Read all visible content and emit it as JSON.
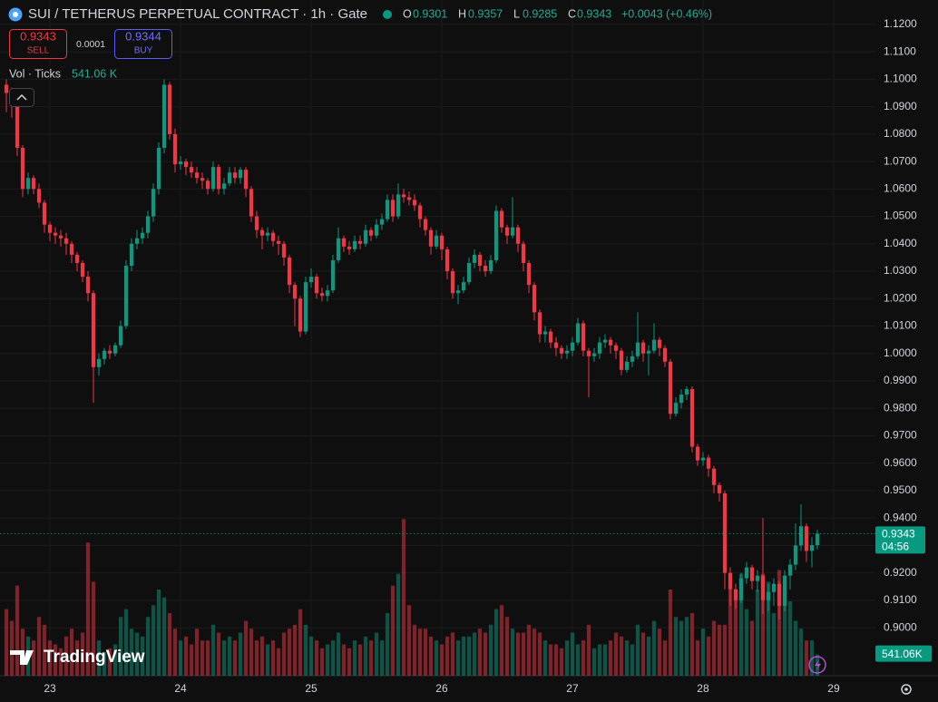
{
  "chart_data": {
    "type": "candlestick",
    "title": "SUI / TETHERUS PERPETUAL CONTRACT · 1h · Gate",
    "ohlc_letters": [
      "O",
      "H",
      "L",
      "C"
    ],
    "change_label": "+0.0043 (+0.46%)",
    "sell_price": 0.9343,
    "sell_label": "SELL",
    "spread": 0.0001,
    "buy_price": 0.9344,
    "buy_label": "BUY",
    "volume_name": "Vol · Ticks",
    "volume_label": "541.06 K",
    "volume_tag": "541.06K",
    "countdown": "04:56",
    "logo": "TradingView",
    "up_color": "#089981",
    "down_color": "#f23645",
    "grid": true,
    "ylim": [
      0.8825,
      1.1289
    ],
    "yticks": [
      {
        "value": 0.9,
        "label": "0.9000"
      },
      {
        "value": 0.91,
        "label": "0.9100"
      },
      {
        "value": 0.92,
        "label": "0.9200"
      },
      {
        "value": 0.93,
        "label": "0.9300"
      },
      {
        "value": 0.94,
        "label": "0.9400"
      },
      {
        "value": 0.95,
        "label": "0.9500"
      },
      {
        "value": 0.96,
        "label": "0.9600"
      },
      {
        "value": 0.97,
        "label": "0.9700"
      },
      {
        "value": 0.98,
        "label": "0.9800"
      },
      {
        "value": 0.99,
        "label": "0.9900"
      },
      {
        "value": 1.0,
        "label": "1.0000"
      },
      {
        "value": 1.01,
        "label": "1.0100"
      },
      {
        "value": 1.02,
        "label": "1.0200"
      },
      {
        "value": 1.03,
        "label": "1.0300"
      },
      {
        "value": 1.04,
        "label": "1.0400"
      },
      {
        "value": 1.05,
        "label": "1.0500"
      },
      {
        "value": 1.06,
        "label": "1.0600"
      },
      {
        "value": 1.07,
        "label": "1.0700"
      },
      {
        "value": 1.08,
        "label": "1.0800"
      },
      {
        "value": 1.09,
        "label": "1.0900"
      },
      {
        "value": 1.1,
        "label": "1.1000"
      },
      {
        "value": 1.11,
        "label": "1.1100"
      },
      {
        "value": 1.12,
        "label": "1.1200"
      }
    ],
    "xlim": [
      -1.1667,
      159.67
    ],
    "xticks": [
      {
        "value": 8,
        "label": "23"
      },
      {
        "value": 32,
        "label": "24"
      },
      {
        "value": 56,
        "label": "25"
      },
      {
        "value": 80,
        "label": "26"
      },
      {
        "value": 104,
        "label": "27"
      },
      {
        "value": 128,
        "label": "28"
      },
      {
        "value": 152,
        "label": "29"
      }
    ],
    "vlim": [
      0,
      4400
    ],
    "open": [
      1.098,
      1.095,
      1.092,
      1.075,
      1.06,
      1.064,
      1.06,
      1.055,
      1.047,
      1.044,
      1.043,
      1.042,
      1.04,
      1.036,
      1.033,
      1.028,
      1.022,
      0.995,
      0.998,
      1.001,
      1.0,
      1.003,
      1.01,
      1.032,
      1.04,
      1.042,
      1.044,
      1.05,
      1.06,
      1.075,
      1.098,
      1.08,
      1.069,
      1.07,
      1.068,
      1.066,
      1.064,
      1.063,
      1.06,
      1.068,
      1.06,
      1.062,
      1.066,
      1.064,
      1.067,
      1.06,
      1.05,
      1.045,
      1.043,
      1.044,
      1.041,
      1.04,
      1.035,
      1.025,
      1.02,
      1.008,
      1.026,
      1.028,
      1.022,
      1.021,
      1.023,
      1.034,
      1.042,
      1.039,
      1.038,
      1.041,
      1.04,
      1.045,
      1.043,
      1.047,
      1.049,
      1.056,
      1.05,
      1.058,
      1.057,
      1.056,
      1.054,
      1.049,
      1.045,
      1.039,
      1.043,
      1.038,
      1.03,
      1.022,
      1.023,
      1.026,
      1.033,
      1.036,
      1.032,
      1.03,
      1.034,
      1.052,
      1.046,
      1.043,
      1.046,
      1.04,
      1.033,
      1.025,
      1.015,
      1.007,
      1.008,
      1.004,
      1.002,
      1.0,
      1.001,
      1.004,
      1.011,
      1.001,
      0.999,
      1.0,
      1.004,
      1.005,
      1.003,
      1.001,
      0.994,
      0.997,
      0.999,
      1.004,
      1.0,
      1.001,
      1.005,
      1.002,
      0.997,
      0.978,
      0.982,
      0.985,
      0.987,
      0.966,
      0.961,
      0.962,
      0.958,
      0.952,
      0.949,
      0.92,
      0.914,
      0.91,
      0.918,
      0.922,
      0.917,
      0.919,
      0.91,
      0.913,
      0.916,
      0.908,
      0.919,
      0.923,
      0.93,
      0.937,
      0.928,
      0.9301
    ],
    "high": [
      1.1,
      1.097,
      1.093,
      1.076,
      1.066,
      1.065,
      1.062,
      1.056,
      1.048,
      1.046,
      1.045,
      1.044,
      1.041,
      1.037,
      1.034,
      1.03,
      1.023,
      1.0,
      1.002,
      1.003,
      1.004,
      1.012,
      1.034,
      1.042,
      1.045,
      1.046,
      1.052,
      1.062,
      1.077,
      1.1,
      1.099,
      1.082,
      1.072,
      1.071,
      1.07,
      1.068,
      1.066,
      1.064,
      1.07,
      1.069,
      1.064,
      1.068,
      1.068,
      1.068,
      1.068,
      1.061,
      1.052,
      1.046,
      1.046,
      1.045,
      1.043,
      1.041,
      1.036,
      1.026,
      1.021,
      1.028,
      1.031,
      1.029,
      1.024,
      1.025,
      1.036,
      1.046,
      1.043,
      1.041,
      1.043,
      1.043,
      1.047,
      1.046,
      1.049,
      1.051,
      1.058,
      1.058,
      1.062,
      1.06,
      1.059,
      1.058,
      1.055,
      1.05,
      1.046,
      1.045,
      1.044,
      1.039,
      1.031,
      1.025,
      1.028,
      1.035,
      1.038,
      1.037,
      1.034,
      1.036,
      1.054,
      1.053,
      1.047,
      1.057,
      1.047,
      1.041,
      1.034,
      1.026,
      1.016,
      1.01,
      1.009,
      1.006,
      1.003,
      1.003,
      1.006,
      1.013,
      1.012,
      1.002,
      1.002,
      1.006,
      1.007,
      1.006,
      1.004,
      1.002,
      0.999,
      1.001,
      1.015,
      1.005,
      1.003,
      1.011,
      1.006,
      1.003,
      0.998,
      0.984,
      0.987,
      0.988,
      0.988,
      0.967,
      0.964,
      0.963,
      0.959,
      0.953,
      0.95,
      0.922,
      0.916,
      0.92,
      0.924,
      0.923,
      0.921,
      0.94,
      0.916,
      0.918,
      0.917,
      0.921,
      0.925,
      0.938,
      0.945,
      0.938,
      0.933,
      0.9357
    ],
    "low": [
      1.088,
      1.086,
      1.072,
      1.057,
      1.058,
      1.058,
      1.053,
      1.044,
      1.041,
      1.04,
      1.039,
      1.036,
      1.033,
      1.03,
      1.026,
      1.019,
      0.982,
      0.992,
      0.996,
      0.998,
      0.999,
      1.002,
      1.009,
      1.03,
      1.038,
      1.04,
      1.042,
      1.048,
      1.058,
      1.073,
      1.078,
      1.066,
      1.067,
      1.065,
      1.064,
      1.062,
      1.06,
      1.058,
      1.059,
      1.058,
      1.058,
      1.061,
      1.062,
      1.062,
      1.057,
      1.048,
      1.042,
      1.038,
      1.041,
      1.039,
      1.036,
      1.032,
      1.022,
      1.01,
      1.006,
      1.007,
      1.024,
      1.02,
      1.019,
      1.019,
      1.022,
      1.033,
      1.037,
      1.036,
      1.037,
      1.038,
      1.039,
      1.041,
      1.042,
      1.045,
      1.048,
      1.048,
      1.049,
      1.055,
      1.054,
      1.052,
      1.046,
      1.043,
      1.036,
      1.038,
      1.034,
      1.027,
      1.02,
      1.018,
      1.022,
      1.025,
      1.031,
      1.03,
      1.028,
      1.029,
      1.033,
      1.044,
      1.04,
      1.042,
      1.037,
      1.03,
      1.022,
      1.012,
      1.004,
      1.004,
      1.002,
      0.999,
      0.998,
      0.998,
      0.999,
      1.003,
      0.999,
      0.984,
      0.997,
      0.998,
      1.002,
      1.0,
      0.998,
      0.992,
      0.993,
      0.995,
      0.998,
      0.997,
      0.992,
      1.0,
      0.999,
      0.995,
      0.976,
      0.977,
      0.98,
      0.983,
      0.964,
      0.959,
      0.959,
      0.955,
      0.949,
      0.946,
      0.914,
      0.908,
      0.907,
      0.909,
      0.916,
      0.914,
      0.913,
      0.905,
      0.906,
      0.908,
      0.903,
      0.906,
      0.914,
      0.921,
      0.928,
      0.924,
      0.922,
      0.9285
    ],
    "close": [
      1.095,
      1.092,
      1.075,
      1.06,
      1.064,
      1.06,
      1.055,
      1.047,
      1.044,
      1.043,
      1.042,
      1.04,
      1.036,
      1.033,
      1.028,
      1.022,
      0.995,
      0.998,
      1.001,
      1.0,
      1.003,
      1.01,
      1.032,
      1.04,
      1.042,
      1.044,
      1.05,
      1.06,
      1.075,
      1.098,
      1.08,
      1.069,
      1.07,
      1.068,
      1.066,
      1.064,
      1.063,
      1.06,
      1.068,
      1.06,
      1.062,
      1.066,
      1.064,
      1.067,
      1.06,
      1.05,
      1.045,
      1.043,
      1.044,
      1.041,
      1.04,
      1.035,
      1.025,
      1.02,
      1.008,
      1.026,
      1.028,
      1.022,
      1.021,
      1.023,
      1.034,
      1.042,
      1.039,
      1.038,
      1.041,
      1.04,
      1.045,
      1.043,
      1.047,
      1.049,
      1.056,
      1.05,
      1.058,
      1.057,
      1.056,
      1.054,
      1.049,
      1.045,
      1.039,
      1.043,
      1.038,
      1.03,
      1.022,
      1.023,
      1.026,
      1.033,
      1.036,
      1.032,
      1.03,
      1.034,
      1.052,
      1.046,
      1.043,
      1.046,
      1.04,
      1.033,
      1.025,
      1.015,
      1.007,
      1.008,
      1.004,
      1.002,
      1.0,
      1.001,
      1.004,
      1.011,
      1.001,
      0.999,
      1.0,
      1.004,
      1.005,
      1.003,
      1.001,
      0.994,
      0.997,
      0.999,
      1.004,
      1.0,
      1.001,
      1.005,
      1.002,
      0.997,
      0.978,
      0.982,
      0.985,
      0.987,
      0.966,
      0.961,
      0.962,
      0.958,
      0.952,
      0.949,
      0.92,
      0.914,
      0.91,
      0.918,
      0.922,
      0.917,
      0.919,
      0.91,
      0.913,
      0.916,
      0.908,
      0.919,
      0.923,
      0.93,
      0.937,
      0.928,
      0.9301,
      0.9343
    ],
    "volume": [
      1700,
      1400,
      2300,
      1200,
      1000,
      900,
      1500,
      1300,
      900,
      800,
      700,
      1000,
      1200,
      900,
      1100,
      3400,
      2400,
      900,
      600,
      700,
      800,
      1500,
      1700,
      1200,
      1100,
      1000,
      1500,
      1800,
      2200,
      2000,
      1600,
      1200,
      900,
      1000,
      800,
      1200,
      900,
      900,
      1300,
      1100,
      900,
      1000,
      900,
      1100,
      1400,
      1200,
      900,
      1000,
      800,
      900,
      700,
      1100,
      1200,
      1300,
      1700,
      1300,
      1000,
      900,
      700,
      800,
      900,
      1100,
      800,
      700,
      900,
      800,
      1000,
      900,
      1100,
      900,
      1600,
      2300,
      2600,
      4000,
      1800,
      1300,
      1200,
      1200,
      1000,
      900,
      800,
      1000,
      1100,
      900,
      1000,
      1000,
      1100,
      1200,
      1100,
      1300,
      1700,
      1800,
      1500,
      1200,
      1100,
      1100,
      1300,
      1200,
      1100,
      900,
      800,
      800,
      700,
      900,
      1100,
      800,
      900,
      1300,
      700,
      800,
      800,
      900,
      1100,
      1000,
      900,
      800,
      1300,
      1100,
      1000,
      1400,
      1200,
      900,
      2200,
      1500,
      1400,
      1500,
      1600,
      900,
      1200,
      1000,
      1400,
      1300,
      1300,
      2400,
      2200,
      2600,
      1700,
      1400,
      2200,
      2600,
      2400,
      1600,
      2700,
      1800,
      1900,
      1400,
      1200,
      900,
      900,
      541.06
    ]
  }
}
